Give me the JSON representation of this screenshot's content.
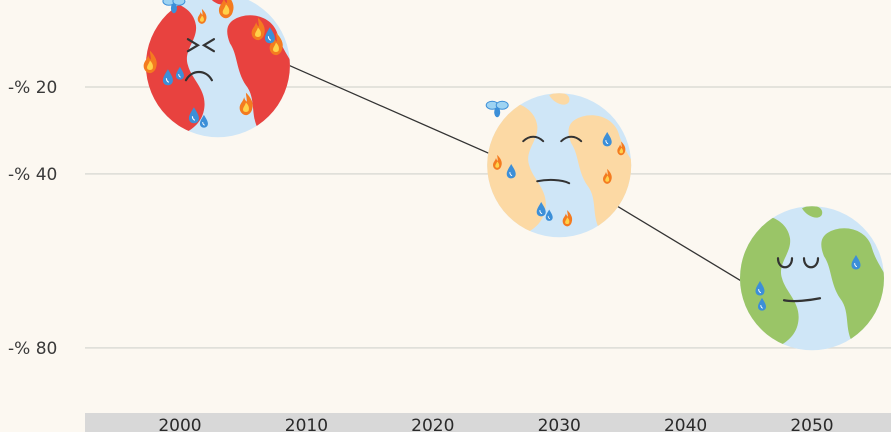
{
  "chart_data": {
    "type": "scatter",
    "title": "",
    "xlabel": "",
    "ylabel": "",
    "x_ticks": [
      "2000",
      "2010",
      "2020",
      "2030",
      "2040",
      "2050"
    ],
    "y_ticks": [
      {
        "value": -20,
        "label": "-% 20"
      },
      {
        "value": -40,
        "label": "-% 40"
      },
      {
        "value": -80,
        "label": "-% 80"
      }
    ],
    "xlim": [
      2000,
      2050
    ],
    "ylim": [
      -92,
      0
    ],
    "grid": true,
    "series": [
      {
        "points": [
          {
            "x": 2003,
            "y": -15,
            "marker": "burning-earth-icon"
          },
          {
            "x": 2030,
            "y": -38,
            "marker": "warm-earth-icon"
          },
          {
            "x": 2050,
            "y": -64,
            "marker": "healthy-earth-icon"
          }
        ]
      }
    ],
    "colors": {
      "background": "#fcf8f1",
      "grid": "#dcdcd6",
      "axis_band": "#d8d8d8",
      "ocean": "#cfe6f7",
      "land_burning": "#e8423f",
      "land_warm": "#fcd9a4",
      "land_healthy": "#9ac567",
      "flame": "#f47b20",
      "drop": "#3c8fd8",
      "arrow": "#333333"
    }
  }
}
